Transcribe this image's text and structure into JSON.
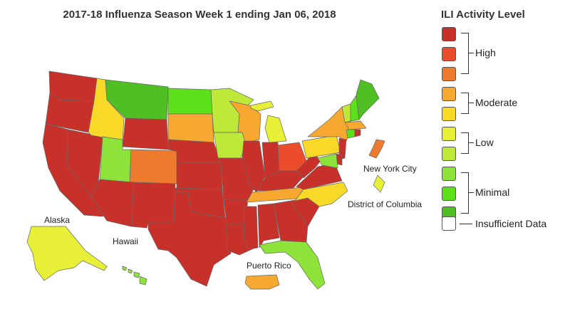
{
  "title": "2017-18 Influenza Season Week 1 ending Jan 06, 2018",
  "legend": {
    "title": "ILI Activity Level",
    "levels": [
      {
        "level": 10,
        "color": "#c8312a",
        "group": "High"
      },
      {
        "level": 9,
        "color": "#ea4c2c",
        "group": "High"
      },
      {
        "level": 8,
        "color": "#ee7a2e",
        "group": "High"
      },
      {
        "level": 7,
        "color": "#f6a831",
        "group": "Moderate"
      },
      {
        "level": 6,
        "color": "#f9d928",
        "group": "Moderate"
      },
      {
        "level": 5,
        "color": "#e7f037",
        "group": "Low"
      },
      {
        "level": 4,
        "color": "#bfe93a",
        "group": "Low"
      },
      {
        "level": 3,
        "color": "#8ee33a",
        "group": "Minimal"
      },
      {
        "level": 2,
        "color": "#5ce01a",
        "group": "Minimal"
      },
      {
        "level": 1,
        "color": "#4fbf24",
        "group": "Minimal"
      },
      {
        "level": 0,
        "color": "#ffffff",
        "group": "Insufficient Data"
      }
    ],
    "groups": [
      "High",
      "Moderate",
      "Low",
      "Minimal",
      "Insufficient Data"
    ]
  },
  "region_labels": {
    "alaska": "Alaska",
    "hawaii": "Hawaii",
    "puerto_rico": "Puerto Rico",
    "nyc": "New York City",
    "dc": "District of Columbia"
  },
  "state_colors": {
    "WA": "#c8312a",
    "OR": "#c8312a",
    "CA": "#c8312a",
    "NV": "#c8312a",
    "ID": "#f9d928",
    "MT": "#4fbf24",
    "WY": "#c8312a",
    "UT": "#8ee33a",
    "AZ": "#c8312a",
    "CO": "#ee7a2e",
    "NM": "#c8312a",
    "ND": "#5ce01a",
    "SD": "#f6a831",
    "NE": "#c8312a",
    "KS": "#c8312a",
    "OK": "#c8312a",
    "TX": "#c8312a",
    "MN": "#bfe93a",
    "IA": "#bfe93a",
    "MO": "#c8312a",
    "AR": "#c8312a",
    "LA": "#c8312a",
    "WI": "#f6a831",
    "IL": "#c8312a",
    "MI": "#e7f037",
    "IN": "#c8312a",
    "OH": "#ea4c2c",
    "KY": "#c8312a",
    "TN": "#f6a831",
    "MS": "#c8312a",
    "AL": "#c8312a",
    "GA": "#c8312a",
    "FL": "#8ee33a",
    "SC": "#c8312a",
    "NC": "#f9d928",
    "VA": "#c8312a",
    "WV": "#c8312a",
    "PA": "#f9d928",
    "NY": "#f6a831",
    "VT": "#bfe93a",
    "NH": "#5ce01a",
    "ME": "#4fbf24",
    "MA": "#f6a831",
    "RI": "#c8312a",
    "CT": "#5ce01a",
    "NJ": "#c8312a",
    "DE": "#c8312a",
    "MD": "#8ee33a",
    "AK": "#e7f037",
    "HI": "#8ee33a",
    "PR": "#f6a831",
    "NYC": "#ee7a2e",
    "DC": "#e7f037"
  }
}
